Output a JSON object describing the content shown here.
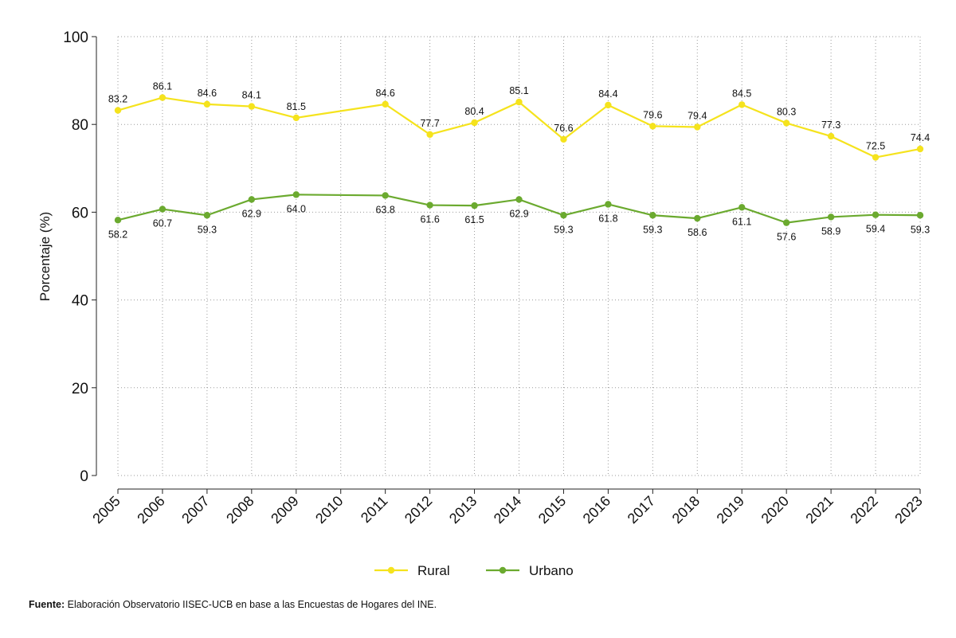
{
  "chart_data": {
    "type": "line",
    "title": "",
    "xlabel": "",
    "ylabel": "Porcentaje (%)",
    "ylim": [
      0,
      100
    ],
    "yticks": [
      0,
      20,
      40,
      60,
      80,
      100
    ],
    "grid": true,
    "legend_position": "bottom",
    "categories": [
      "2005",
      "2006",
      "2007",
      "2008",
      "2009",
      "2010",
      "2011",
      "2012",
      "2013",
      "2014",
      "2015",
      "2016",
      "2017",
      "2018",
      "2019",
      "2020",
      "2021",
      "2022",
      "2023"
    ],
    "series": [
      {
        "name": "Rural",
        "color": "#F5E31D",
        "label_position": "above",
        "values": [
          83.2,
          86.1,
          84.6,
          84.1,
          81.5,
          null,
          84.6,
          77.7,
          80.4,
          85.1,
          76.6,
          84.4,
          79.6,
          79.4,
          84.5,
          80.3,
          77.3,
          72.5,
          74.4
        ],
        "labels": [
          "83.2",
          "86.1",
          "84.6",
          "84.1",
          "81.5",
          null,
          "84.6",
          "77.7",
          "80.4",
          "85.1",
          "76.6",
          "84.4",
          "79.6",
          "79.4",
          "84.5",
          "80.3",
          "77.3",
          "72.5",
          "74.4"
        ]
      },
      {
        "name": "Urbano",
        "color": "#6BAA2F",
        "label_position": "below",
        "values": [
          58.2,
          60.7,
          59.3,
          62.9,
          64.0,
          null,
          63.8,
          61.6,
          61.5,
          62.9,
          59.3,
          61.8,
          59.3,
          58.6,
          61.1,
          57.6,
          58.9,
          59.4,
          59.3
        ],
        "labels": [
          "58.2",
          "60.7",
          "59.3",
          "62.9",
          "64.0",
          null,
          "63.8",
          "61.6",
          "61.5",
          "62.9",
          "59.3",
          "61.8",
          "59.3",
          "58.6",
          "61.1",
          "57.6",
          "58.9",
          "59.4",
          "59.3"
        ]
      }
    ]
  },
  "footer": {
    "source_label": "Fuente:",
    "source_text": " Elaboración Observatorio IISEC-UCB en base a las Encuestas de Hogares del INE."
  }
}
